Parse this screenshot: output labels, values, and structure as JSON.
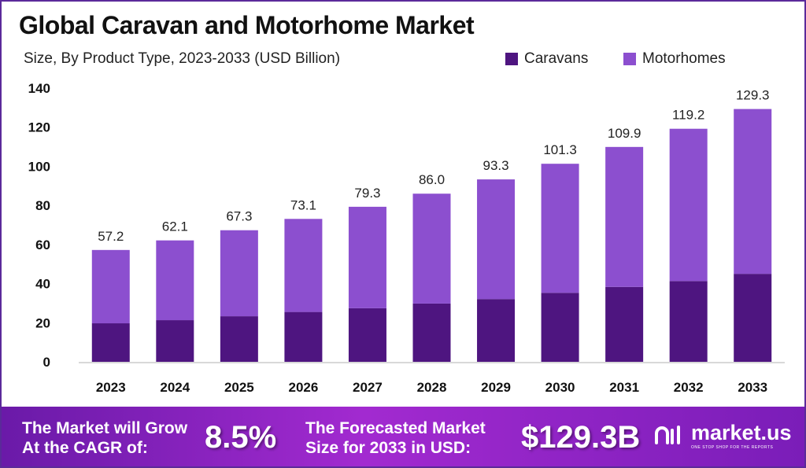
{
  "chart_data": {
    "type": "bar",
    "stacked": true,
    "title": "Global Caravan and Motorhome Market",
    "subtitle": "Size, By Product Type, 2023-2033 (USD Billion)",
    "categories": [
      "2023",
      "2024",
      "2025",
      "2026",
      "2027",
      "2028",
      "2029",
      "2030",
      "2031",
      "2032",
      "2033"
    ],
    "series": [
      {
        "name": "Caravans",
        "color": "#4e1580",
        "values": [
          19.7,
          21.3,
          23.3,
          25.5,
          27.4,
          29.8,
          32.1,
          35.3,
          38.3,
          41.3,
          45.0
        ]
      },
      {
        "name": "Motorhomes",
        "color": "#8c4fcf",
        "values": [
          37.5,
          40.8,
          44.0,
          47.6,
          51.9,
          56.2,
          61.2,
          66.0,
          71.6,
          77.9,
          84.3
        ]
      }
    ],
    "totals": [
      "57.2",
      "62.1",
      "67.3",
      "73.1",
      "79.3",
      "86.0",
      "93.3",
      "101.3",
      "109.9",
      "119.2",
      "129.3"
    ],
    "yticks": [
      0,
      20,
      40,
      60,
      80,
      100,
      120,
      140
    ],
    "ylim": [
      0,
      140
    ],
    "grid": false,
    "legend": "top-right"
  },
  "footer": {
    "cagr_label_1": "The Market will Grow",
    "cagr_label_2": "At the CAGR of:",
    "cagr_value": "8.5%",
    "forecast_label_1": "The Forecasted Market",
    "forecast_label_2": "Size for 2033 in USD:",
    "forecast_value": "$129.3B",
    "logo_name": "market.us",
    "logo_tagline": "ONE STOP SHOP FOR THE REPORTS"
  }
}
